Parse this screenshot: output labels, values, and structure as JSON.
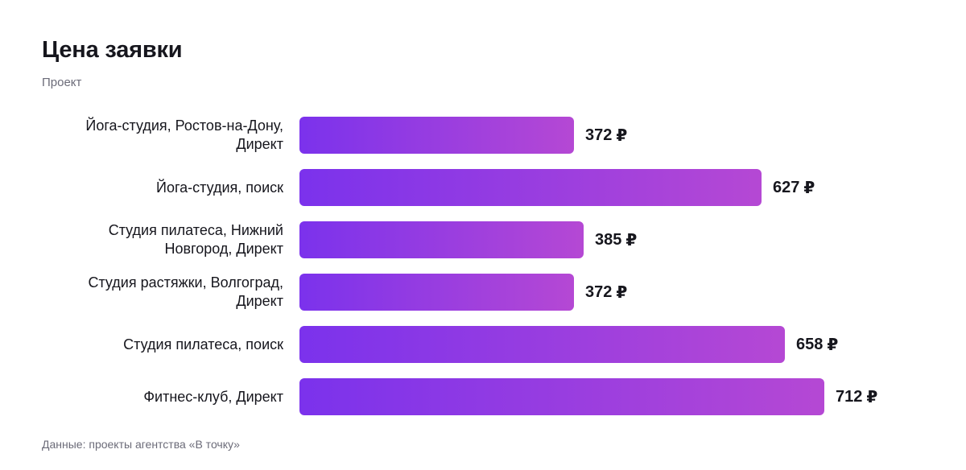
{
  "title": "Цена заявки",
  "subtitle": "Проект",
  "footer": "Данные: проекты агентства «В точку»",
  "colors": {
    "bar_start": "#7b32ec",
    "bar_end": "#b548d4",
    "text": "#16161d",
    "muted": "#6b6b78"
  },
  "chart_data": {
    "type": "bar",
    "orientation": "horizontal",
    "title": "Цена заявки",
    "subtitle": "Проект",
    "currency": "₽",
    "categories": [
      "Йога-студия, Ростов-на-Дону, Директ",
      "Йога-студия, поиск",
      "Студия пилатеса, Нижний Новгород, Директ",
      "Студия растяжки, Волгоград, Директ",
      "Студия пилатеса, поиск",
      "Фитнес-клуб, Директ"
    ],
    "values": [
      372,
      627,
      385,
      372,
      658,
      712
    ],
    "grid": false,
    "legend": "none"
  }
}
